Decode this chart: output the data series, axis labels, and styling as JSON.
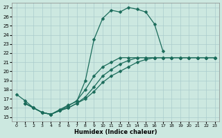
{
  "xlabel": "Humidex (Indice chaleur)",
  "bg_color": "#cce8e0",
  "grid_color": "#aacccc",
  "line_color": "#1a6b5a",
  "xlim": [
    -0.5,
    23.5
  ],
  "ylim": [
    14.5,
    27.5
  ],
  "xticks": [
    0,
    1,
    2,
    3,
    4,
    5,
    6,
    7,
    8,
    9,
    10,
    11,
    12,
    13,
    14,
    15,
    16,
    17,
    18,
    19,
    20,
    21,
    22,
    23
  ],
  "yticks": [
    15,
    16,
    17,
    18,
    19,
    20,
    21,
    22,
    23,
    24,
    25,
    26,
    27
  ],
  "line1_x": [
    0,
    1,
    2,
    3,
    4,
    5,
    6,
    7,
    8,
    9,
    10,
    11,
    12,
    13,
    14,
    15,
    16,
    17
  ],
  "line1_y": [
    17.5,
    16.8,
    16.0,
    15.5,
    15.3,
    15.8,
    16.3,
    16.7,
    19.0,
    23.5,
    25.8,
    26.7,
    26.5,
    27.0,
    26.8,
    26.5,
    25.2,
    22.2
  ],
  "line2_x": [
    1,
    2,
    3,
    4,
    5,
    6,
    7,
    8,
    9,
    10,
    11,
    12,
    13,
    14,
    15,
    16,
    17,
    18,
    19,
    20,
    21,
    22,
    23
  ],
  "line2_y": [
    16.5,
    16.0,
    15.5,
    15.3,
    15.7,
    16.0,
    16.5,
    17.0,
    17.8,
    18.8,
    19.5,
    20.0,
    20.5,
    21.0,
    21.3,
    21.5,
    21.5,
    21.5,
    21.5,
    21.5,
    21.5,
    21.5,
    21.5
  ],
  "line3_x": [
    1,
    2,
    3,
    4,
    5,
    6,
    7,
    8,
    9,
    10,
    11,
    12,
    13,
    14,
    15,
    16,
    17,
    18,
    19,
    20,
    21,
    22,
    23
  ],
  "line3_y": [
    16.5,
    16.0,
    15.5,
    15.3,
    15.7,
    16.0,
    16.5,
    17.2,
    18.3,
    19.5,
    20.2,
    20.8,
    21.2,
    21.5,
    21.5,
    21.5,
    21.5,
    21.5,
    21.5,
    21.5,
    21.5,
    21.5,
    21.5
  ],
  "line4_x": [
    1,
    2,
    3,
    4,
    5,
    6,
    7,
    8,
    9,
    10,
    11,
    12,
    13,
    14,
    15,
    16,
    17,
    18,
    19,
    20,
    21,
    22,
    23
  ],
  "line4_y": [
    16.5,
    16.0,
    15.5,
    15.3,
    15.7,
    16.2,
    16.8,
    18.0,
    19.5,
    20.5,
    21.0,
    21.5,
    21.5,
    21.5,
    21.5,
    21.5,
    21.5,
    21.5,
    21.5,
    21.5,
    21.5,
    21.5,
    21.5
  ]
}
